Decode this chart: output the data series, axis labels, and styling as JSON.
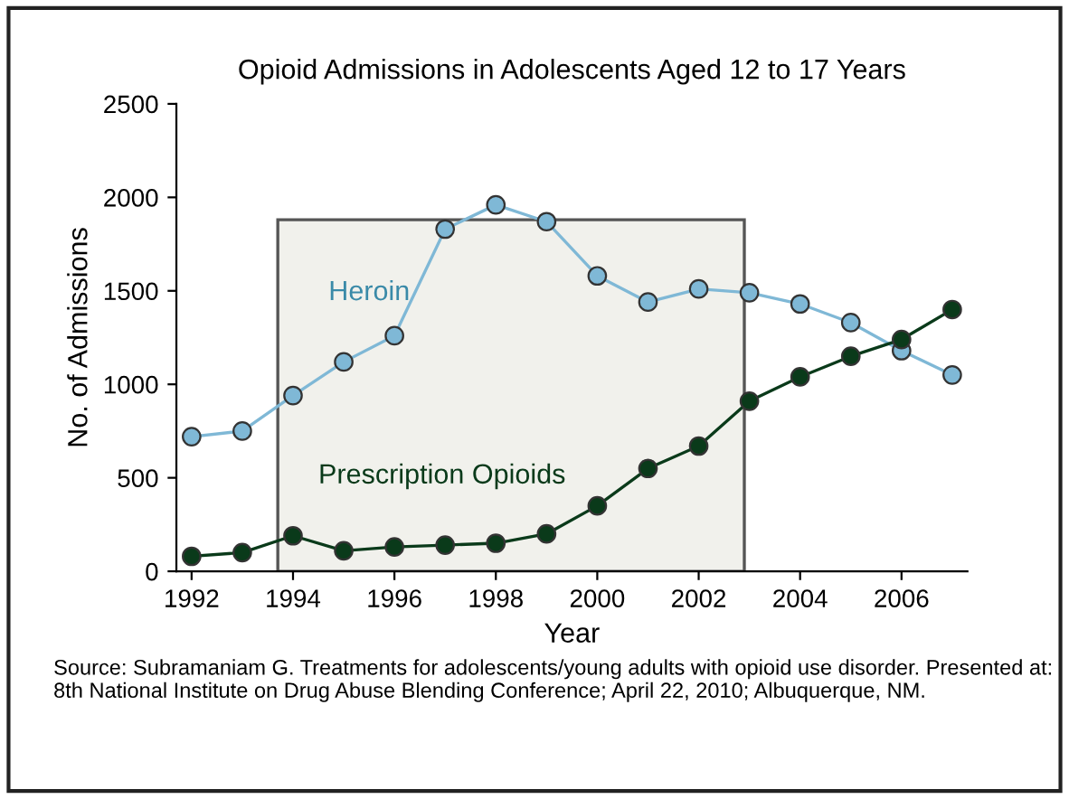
{
  "chart_data": {
    "type": "line",
    "title": "Opioid Admissions in Adolescents Aged 12 to 17 Years",
    "xlabel": "Year",
    "ylabel": "No. of Admissions",
    "x": [
      1992,
      1993,
      1994,
      1995,
      1996,
      1997,
      1998,
      1999,
      2000,
      2001,
      2002,
      2003,
      2004,
      2005,
      2006,
      2007
    ],
    "series": [
      {
        "name": "Heroin",
        "color": "#7fb8d6",
        "values": [
          720,
          750,
          940,
          1120,
          1260,
          1830,
          1960,
          1870,
          1580,
          1440,
          1510,
          1490,
          1430,
          1330,
          1180,
          1050
        ]
      },
      {
        "name": "Prescription Opioids",
        "color": "#0a3a1a",
        "values": [
          80,
          100,
          190,
          110,
          130,
          140,
          150,
          200,
          350,
          550,
          670,
          910,
          1040,
          1150,
          1240,
          1400
        ]
      }
    ],
    "xlim": [
      1991.7,
      2007.3
    ],
    "xticks": [
      1992,
      1994,
      1996,
      1998,
      2000,
      2002,
      2004,
      2006
    ],
    "ylim": [
      0,
      2500
    ],
    "yticks": [
      0,
      500,
      1000,
      1500,
      2000,
      2500
    ],
    "bands": [
      {
        "axis": "x",
        "from": 1993.7,
        "to": 2002.9,
        "color": "#f1f1ec"
      }
    ],
    "marker": "circle",
    "grid": false,
    "legend": false,
    "annotations": [
      "Source: Subramaniam G. Treatments for adolescents/young adults with opioid use disorder. Presented at: 8th National Institute on Drug Abuse Blending Conference; April 22, 2010; Albuquerque, NM."
    ]
  }
}
